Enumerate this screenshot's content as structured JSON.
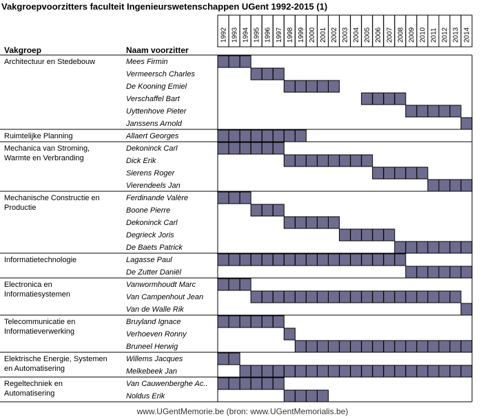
{
  "title": "Vakgroepvoorzitters faculteit Ingenieurswetenschappen UGent 1992-2015 (1)",
  "header": {
    "group": "Vakgroep",
    "name": "Naam voorzitter"
  },
  "footer": "www.UGentMemorie.be (bron: www.UGentMemorialis.be)",
  "colors": {
    "bar": "#6d6b8e",
    "border": "#000000"
  },
  "chart_data": {
    "type": "gantt",
    "years": [
      "1992",
      "1993",
      "1994",
      "1995",
      "1996",
      "1997",
      "1998",
      "1999",
      "2000",
      "2001",
      "2002",
      "2003",
      "2004",
      "2005",
      "2006",
      "2007",
      "2008",
      "2009",
      "2010",
      "2011",
      "2012",
      "2013",
      "2014"
    ],
    "groups": [
      {
        "lines": [
          "Architectuur en Stedebouw"
        ],
        "chairs": [
          {
            "name": "Mees Firmin",
            "start": 1992,
            "end": 1994
          },
          {
            "name": "Vermeersch Charles",
            "start": 1995,
            "end": 1997
          },
          {
            "name": "De Kooning Emiel",
            "start": 1998,
            "end": 2002
          },
          {
            "name": "Verschaffel Bart",
            "start": 2005,
            "end": 2008
          },
          {
            "name": "Uyttenhove Pieter",
            "start": 2009,
            "end": 2013
          },
          {
            "name": "Janssens Arnold",
            "start": 2014,
            "end": 2014
          }
        ]
      },
      {
        "lines": [
          "Ruimtelijke Planning"
        ],
        "chairs": [
          {
            "name": "Allaert Georges",
            "start": 1992,
            "end": 1999
          }
        ]
      },
      {
        "lines": [
          "Mechanica van Stroming,",
          "Warmte en Verbranding"
        ],
        "chairs": [
          {
            "name": "Dekoninck Carl",
            "start": 1992,
            "end": 1997
          },
          {
            "name": "Dick Erik",
            "start": 1998,
            "end": 2005
          },
          {
            "name": "Sierens Roger",
            "start": 2006,
            "end": 2010
          },
          {
            "name": "Vierendeels Jan",
            "start": 2011,
            "end": 2014
          }
        ]
      },
      {
        "lines": [
          "Mechanische Constructie en",
          "Productie"
        ],
        "chairs": [
          {
            "name": "Ferdinande Valère",
            "start": 1992,
            "end": 1994
          },
          {
            "name": "Boone Pierre",
            "start": 1995,
            "end": 1997
          },
          {
            "name": "Dekoninck Carl",
            "start": 1998,
            "end": 2002
          },
          {
            "name": "Degrieck Joris",
            "start": 2003,
            "end": 2007
          },
          {
            "name": "De Baets Patrick",
            "start": 2008,
            "end": 2014
          }
        ]
      },
      {
        "lines": [
          "Informatietechnologie"
        ],
        "chairs": [
          {
            "name": "Lagasse Paul",
            "start": 1992,
            "end": 2008
          },
          {
            "name": "De Zutter Daniël",
            "start": 2009,
            "end": 2014
          }
        ]
      },
      {
        "lines": [
          "Electronica en",
          "Informatiesystemen"
        ],
        "chairs": [
          {
            "name": "Vanwormhoudt Marc",
            "start": 1992,
            "end": 1994
          },
          {
            "name": "Van Campenhout Jean",
            "start": 1995,
            "end": 2013
          },
          {
            "name": "Van de Walle Rik",
            "start": 2014,
            "end": 2014
          }
        ]
      },
      {
        "lines": [
          "Telecommunicatie en",
          "Informatieverwerking"
        ],
        "chairs": [
          {
            "name": "Bruyland Ignace",
            "start": 1992,
            "end": 1997
          },
          {
            "name": "Verhoeven Ronny",
            "start": 1998,
            "end": 1998
          },
          {
            "name": "Bruneel Herwig",
            "start": 1999,
            "end": 2014
          }
        ]
      },
      {
        "lines": [
          "Elektrische Energie, Systemen",
          "en Automatisering"
        ],
        "chairs": [
          {
            "name": "Willems Jacques",
            "start": 1992,
            "end": 1993
          },
          {
            "name": "Melkebeek Jan",
            "start": 1994,
            "end": 2014
          }
        ]
      },
      {
        "lines": [
          "Regeltechniek en",
          "Automatisering"
        ],
        "chairs": [
          {
            "name": "Van Cauwenberghe Ac..",
            "start": 1992,
            "end": 1997
          },
          {
            "name": "Noldus Erik",
            "start": 1998,
            "end": 2001
          }
        ]
      }
    ]
  }
}
